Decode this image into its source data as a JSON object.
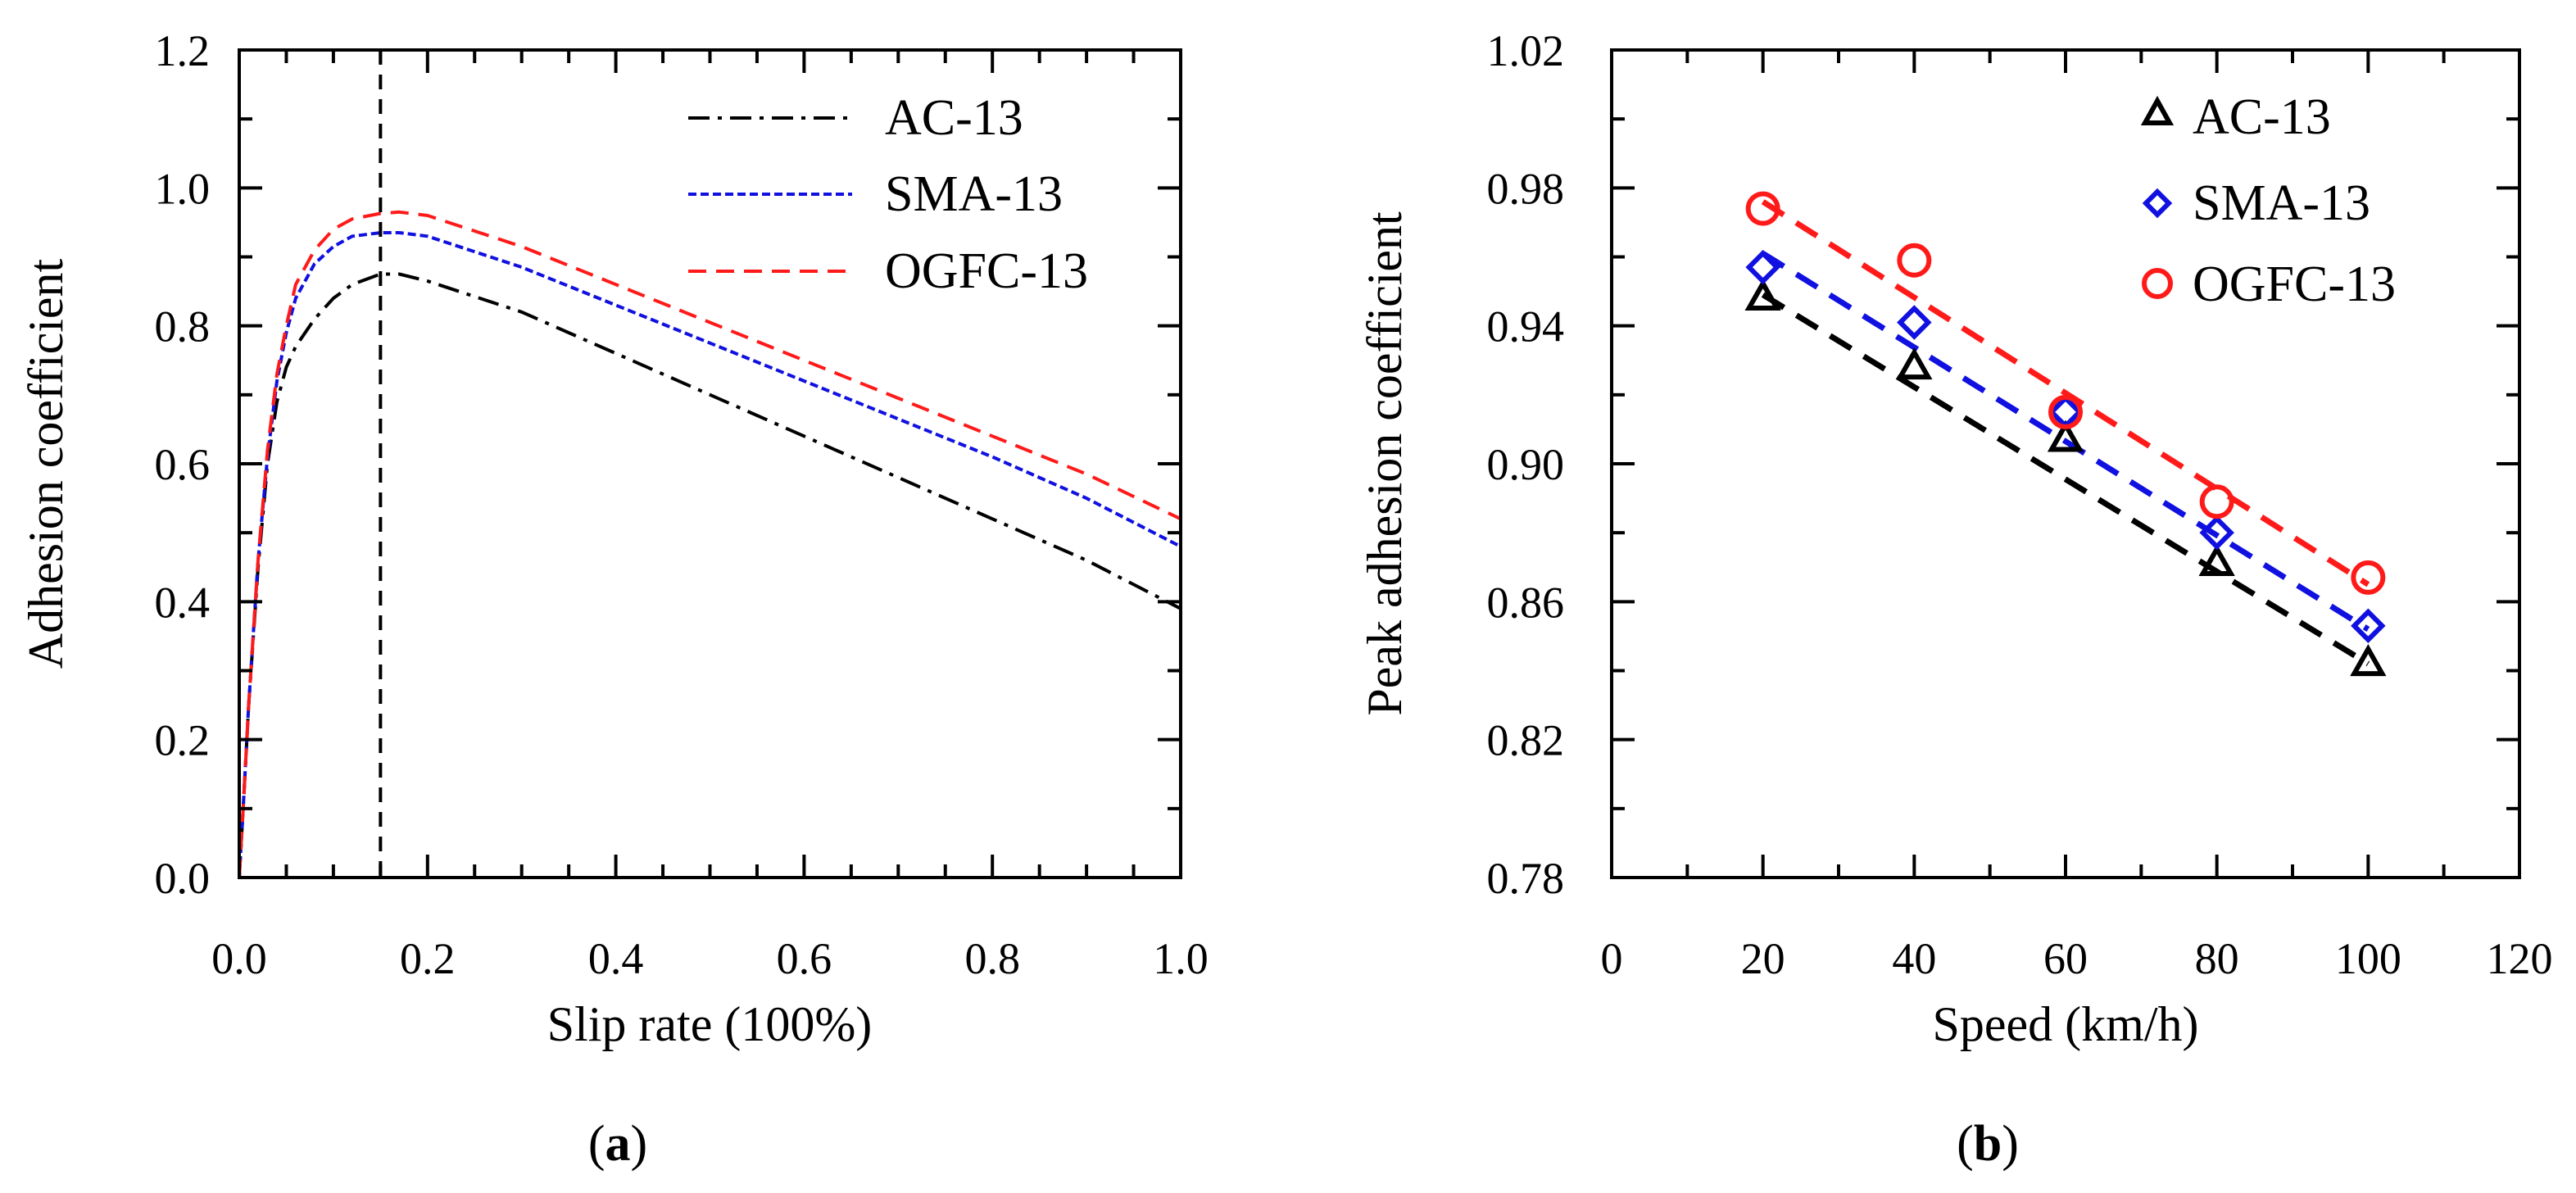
{
  "chart_data": [
    {
      "panel": "(a)",
      "panel_paren_open": "(",
      "panel_letter": "a",
      "panel_paren_close": ")",
      "type": "line",
      "xlabel": "Slip rate (100%)",
      "ylabel": "Adhesion coefficient",
      "xlim": [
        0.0,
        1.0
      ],
      "ylim": [
        0.0,
        1.2
      ],
      "xticks": [
        "0.0",
        "0.2",
        "0.4",
        "0.6",
        "0.8",
        "1.0"
      ],
      "yticks": [
        "0.0",
        "0.2",
        "0.4",
        "0.6",
        "0.8",
        "1.0",
        "1.2"
      ],
      "grid": false,
      "legend_position": "top-right",
      "reference_line": {
        "x": 0.15,
        "style": "dashed",
        "color": "#000000"
      },
      "series": [
        {
          "name": "AC-13",
          "color": "#000000",
          "style": "dash-dot",
          "x": [
            0.0,
            0.005,
            0.01,
            0.02,
            0.03,
            0.04,
            0.05,
            0.06,
            0.08,
            0.1,
            0.12,
            0.15,
            0.17,
            0.2,
            0.3,
            0.4,
            0.5,
            0.6,
            0.7,
            0.8,
            0.9,
            1.0
          ],
          "y": [
            0.0,
            0.12,
            0.25,
            0.45,
            0.6,
            0.69,
            0.74,
            0.77,
            0.81,
            0.84,
            0.86,
            0.875,
            0.875,
            0.865,
            0.82,
            0.76,
            0.7,
            0.64,
            0.58,
            0.52,
            0.46,
            0.39
          ]
        },
        {
          "name": "SMA-13",
          "color": "#1010e0",
          "style": "short-dash",
          "x": [
            0.0,
            0.005,
            0.01,
            0.02,
            0.03,
            0.04,
            0.05,
            0.06,
            0.08,
            0.1,
            0.12,
            0.15,
            0.17,
            0.2,
            0.3,
            0.4,
            0.5,
            0.6,
            0.7,
            0.8,
            0.9,
            1.0
          ],
          "y": [
            0.0,
            0.12,
            0.25,
            0.46,
            0.61,
            0.72,
            0.79,
            0.84,
            0.89,
            0.915,
            0.93,
            0.935,
            0.935,
            0.93,
            0.885,
            0.83,
            0.775,
            0.72,
            0.665,
            0.61,
            0.55,
            0.48
          ]
        },
        {
          "name": "OGFC-13",
          "color": "#ff1a1a",
          "style": "dashed",
          "x": [
            0.0,
            0.005,
            0.01,
            0.02,
            0.03,
            0.04,
            0.05,
            0.06,
            0.08,
            0.1,
            0.12,
            0.15,
            0.17,
            0.2,
            0.3,
            0.4,
            0.5,
            0.6,
            0.7,
            0.8,
            0.9,
            1.0
          ],
          "y": [
            0.0,
            0.12,
            0.25,
            0.46,
            0.62,
            0.73,
            0.8,
            0.86,
            0.91,
            0.94,
            0.955,
            0.963,
            0.965,
            0.96,
            0.915,
            0.86,
            0.805,
            0.75,
            0.695,
            0.64,
            0.585,
            0.52
          ]
        }
      ]
    },
    {
      "panel": "(b)",
      "panel_paren_open": "(",
      "panel_letter": "b",
      "panel_paren_close": ")",
      "type": "scatter",
      "xlabel": "Speed (km/h)",
      "ylabel": "Peak adhesion coefficient",
      "xlim": [
        0,
        120
      ],
      "ylim": [
        0.78,
        1.02
      ],
      "xticks": [
        "0",
        "20",
        "40",
        "60",
        "80",
        "100",
        "120"
      ],
      "yticks": [
        "0.78",
        "0.82",
        "0.86",
        "0.90",
        "0.94",
        "0.98",
        "1.02"
      ],
      "grid": false,
      "legend_position": "top-right",
      "series": [
        {
          "name": "AC-13",
          "color": "#000000",
          "marker": "triangle",
          "x": [
            20,
            40,
            60,
            80,
            100
          ],
          "y": [
            0.948,
            0.928,
            0.907,
            0.871,
            0.842
          ],
          "fit": [
            0.949,
            0.842
          ]
        },
        {
          "name": "SMA-13",
          "color": "#1010e0",
          "marker": "diamond",
          "x": [
            20,
            40,
            60,
            80,
            100
          ],
          "y": [
            0.957,
            0.941,
            0.915,
            0.88,
            0.853
          ],
          "fit": [
            0.961,
            0.852
          ]
        },
        {
          "name": "OGFC-13",
          "color": "#ff1a1a",
          "marker": "circle",
          "x": [
            20,
            40,
            60,
            80,
            100
          ],
          "y": [
            0.974,
            0.959,
            0.915,
            0.889,
            0.867
          ],
          "fit": [
            0.976,
            0.865
          ]
        }
      ]
    }
  ]
}
